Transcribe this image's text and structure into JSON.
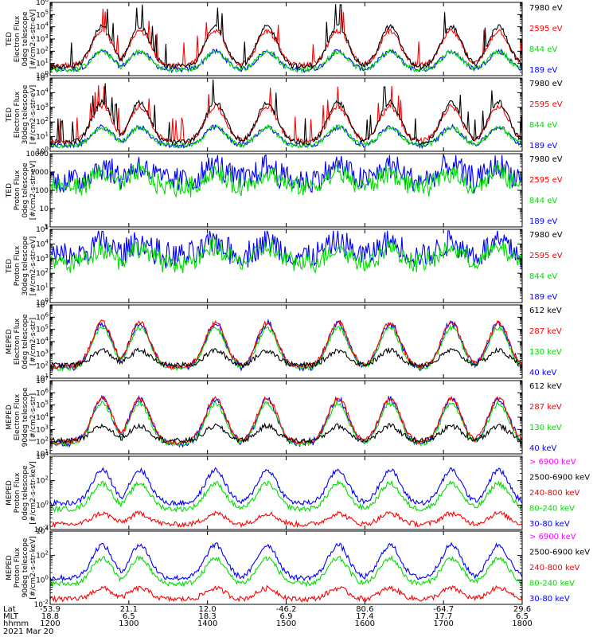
{
  "chart_data": {
    "type": "line",
    "panels": [
      {
        "ylabel": [
          "TED",
          "Electron Flux",
          "0deg telescope",
          "[#/cm2-s-str-eV]"
        ],
        "yscale": "log",
        "ytick_labels": [
          "10^0",
          "10^1",
          "10^2",
          "10^3",
          "10^4",
          "10^5",
          "10^6"
        ],
        "channels": [
          {
            "label": "7980 eV",
            "color": "#000000"
          },
          {
            "label": "2595 eV",
            "color": "#ff0000"
          },
          {
            "label": "844 eV",
            "color": "#00dd00"
          },
          {
            "label": "189 eV",
            "color": "#0000ff"
          }
        ]
      },
      {
        "ylabel": [
          "TED",
          "Electron Flux",
          "30deg telescope",
          "[#/cm2-s-str-eV]"
        ],
        "yscale": "log",
        "ytick_labels": [
          "10^0",
          "10^1",
          "10^2",
          "10^3",
          "10^4",
          "10^5"
        ],
        "channels": [
          {
            "label": "7980 eV",
            "color": "#000000"
          },
          {
            "label": "2595 eV",
            "color": "#ff0000"
          },
          {
            "label": "844 eV",
            "color": "#00dd00"
          },
          {
            "label": "189 eV",
            "color": "#0000ff"
          }
        ]
      },
      {
        "ylabel": [
          "TED",
          "Proton Flux",
          "0deg telescope",
          "[#/cm2-s-str-eV]"
        ],
        "yscale": "log",
        "ytick_labels": [
          "1",
          "10",
          "100",
          "1000",
          "10000"
        ],
        "channels": [
          {
            "label": "7980 eV",
            "color": "#000000"
          },
          {
            "label": "2595 eV",
            "color": "#ff0000"
          },
          {
            "label": "844 eV",
            "color": "#00dd00"
          },
          {
            "label": "189 eV",
            "color": "#0000ff"
          }
        ]
      },
      {
        "ylabel": [
          "TED",
          "Proton Flux",
          "30deg telescope",
          "[#/cm2-s-str-eV]"
        ],
        "yscale": "log",
        "ytick_labels": [
          "10^0",
          "10^1",
          "10^2",
          "10^3",
          "10^4",
          "10^5"
        ],
        "channels": [
          {
            "label": "7980 eV",
            "color": "#000000"
          },
          {
            "label": "2595 eV",
            "color": "#ff0000"
          },
          {
            "label": "844 eV",
            "color": "#00dd00"
          },
          {
            "label": "189 eV",
            "color": "#0000ff"
          }
        ]
      },
      {
        "ylabel": [
          "MEPED",
          "Electron Flux",
          "0deg telescope",
          "[#/cm2-s-str]"
        ],
        "yscale": "log",
        "ytick_labels": [
          "10^1",
          "10^2",
          "10^3",
          "10^4",
          "10^5",
          "10^6",
          "10^7"
        ],
        "channels": [
          {
            "label": "612 keV",
            "color": "#000000"
          },
          {
            "label": "287 keV",
            "color": "#ff0000"
          },
          {
            "label": "130 keV",
            "color": "#00dd00"
          },
          {
            "label": "40 keV",
            "color": "#0000ff"
          }
        ]
      },
      {
        "ylabel": [
          "MEPED",
          "Electron Flux",
          "90deg telescope",
          "[#/cm2-s-str]"
        ],
        "yscale": "log",
        "ytick_labels": [
          "10^1",
          "10^2",
          "10^3",
          "10^4",
          "10^5",
          "10^6",
          "10^7"
        ],
        "channels": [
          {
            "label": "612 keV",
            "color": "#000000"
          },
          {
            "label": "287 keV",
            "color": "#ff0000"
          },
          {
            "label": "130 keV",
            "color": "#00dd00"
          },
          {
            "label": "40 keV",
            "color": "#0000ff"
          }
        ]
      },
      {
        "ylabel": [
          "MEPED",
          "Proton Flux",
          "0deg telescope",
          "[#/cm2-s-str-keV]"
        ],
        "yscale": "log",
        "ytick_labels": [
          "10^-2",
          "10^0",
          "10^2",
          "10^4"
        ],
        "channels": [
          {
            "label": "> 6900 keV",
            "color": "#ff00ff"
          },
          {
            "label": "2500-6900 keV",
            "color": "#000000"
          },
          {
            "label": "240-800 keV",
            "color": "#ff0000"
          },
          {
            "label": "80-240 keV",
            "color": "#00dd00"
          },
          {
            "label": "30-80 keV",
            "color": "#0000ff"
          }
        ]
      },
      {
        "ylabel": [
          "MEPED",
          "Proton Flux",
          "90deg telescope",
          "[#/cm2-s-str-keV]"
        ],
        "yscale": "log",
        "ytick_labels": [
          "10^-2",
          "10^0",
          "10^2",
          "10^4"
        ],
        "channels": [
          {
            "label": "> 6900 keV",
            "color": "#ff00ff"
          },
          {
            "label": "2500-6900 keV",
            "color": "#000000"
          },
          {
            "label": "240-800 keV",
            "color": "#ff0000"
          },
          {
            "label": "80-240 keV",
            "color": "#00dd00"
          },
          {
            "label": "30-80 keV",
            "color": "#0000ff"
          }
        ]
      }
    ],
    "x_axis": {
      "row_labels": [
        "Lat",
        "MLT",
        "hhmm"
      ],
      "ticks": [
        {
          "lat": "-53.9",
          "mlt": "18.8",
          "hhmm": "1200"
        },
        {
          "lat": "21.1",
          "mlt": "6.5",
          "hhmm": "1300"
        },
        {
          "lat": "12.0",
          "mlt": "18.3",
          "hhmm": "1400"
        },
        {
          "lat": "-46.2",
          "mlt": "6.9",
          "hhmm": "1500"
        },
        {
          "lat": "80.6",
          "mlt": "17.4",
          "hhmm": "1600"
        },
        {
          "lat": "-64.7",
          "mlt": "17.7",
          "hhmm": "1700"
        },
        {
          "lat": "29.6",
          "mlt": "6.5",
          "hhmm": "1800"
        }
      ],
      "date": "2021 Mar 20"
    }
  }
}
